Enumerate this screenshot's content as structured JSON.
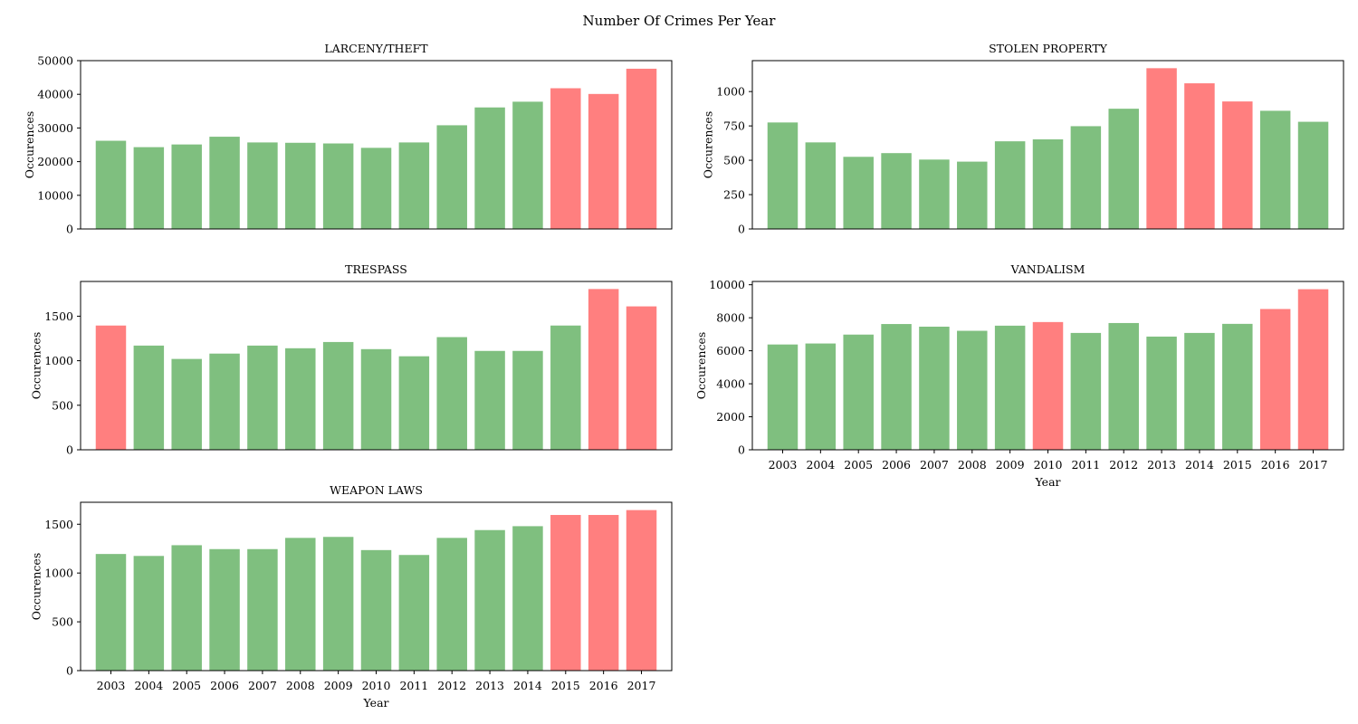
{
  "figure": {
    "title": "Number Of Crimes Per Year"
  },
  "colors": {
    "normal": "#7fbf7f",
    "high": "#ff7f7f"
  },
  "chart_data": [
    {
      "type": "bar",
      "title": "LARCENY/THEFT",
      "xlabel": "",
      "ylabel": "Occurences",
      "categories": [
        "2003",
        "2004",
        "2005",
        "2006",
        "2007",
        "2008",
        "2009",
        "2010",
        "2011",
        "2012",
        "2013",
        "2014",
        "2015",
        "2016",
        "2017"
      ],
      "values": [
        26200,
        24300,
        25100,
        27400,
        25700,
        25600,
        25400,
        24100,
        25700,
        30800,
        36100,
        37800,
        41800,
        40100,
        47600
      ],
      "highlighted": [
        "2015",
        "2016",
        "2017"
      ],
      "ylim": [
        0,
        50000
      ],
      "yticks": [
        0,
        10000,
        20000,
        30000,
        40000,
        50000
      ],
      "show_xticks": false
    },
    {
      "type": "bar",
      "title": "STOLEN PROPERTY",
      "xlabel": "",
      "ylabel": "Occurences",
      "categories": [
        "2003",
        "2004",
        "2005",
        "2006",
        "2007",
        "2008",
        "2009",
        "2010",
        "2011",
        "2012",
        "2013",
        "2014",
        "2015",
        "2016",
        "2017"
      ],
      "values": [
        775,
        630,
        525,
        552,
        505,
        490,
        638,
        652,
        748,
        875,
        1170,
        1060,
        928,
        860,
        780
      ],
      "highlighted": [
        "2013",
        "2014",
        "2015"
      ],
      "ylim": [
        0,
        1225
      ],
      "yticks": [
        0,
        250,
        500,
        750,
        1000
      ],
      "show_xticks": false
    },
    {
      "type": "bar",
      "title": "TRESPASS",
      "xlabel": "",
      "ylabel": "Occurences",
      "categories": [
        "2003",
        "2004",
        "2005",
        "2006",
        "2007",
        "2008",
        "2009",
        "2010",
        "2011",
        "2012",
        "2013",
        "2014",
        "2015",
        "2016",
        "2017"
      ],
      "values": [
        1395,
        1170,
        1020,
        1080,
        1170,
        1140,
        1210,
        1130,
        1050,
        1265,
        1110,
        1110,
        1395,
        1805,
        1610
      ],
      "highlighted": [
        "2003",
        "2016",
        "2017"
      ],
      "ylim": [
        0,
        1890
      ],
      "yticks": [
        0,
        500,
        1000,
        1500
      ],
      "show_xticks": false
    },
    {
      "type": "bar",
      "title": "VANDALISM",
      "xlabel": "Year",
      "ylabel": "Occurences",
      "categories": [
        "2003",
        "2004",
        "2005",
        "2006",
        "2007",
        "2008",
        "2009",
        "2010",
        "2011",
        "2012",
        "2013",
        "2014",
        "2015",
        "2016",
        "2017"
      ],
      "values": [
        6380,
        6440,
        6980,
        7620,
        7460,
        7210,
        7520,
        7740,
        7080,
        7680,
        6860,
        7080,
        7630,
        8530,
        9730
      ],
      "highlighted": [
        "2010",
        "2016",
        "2017"
      ],
      "ylim": [
        0,
        10200
      ],
      "yticks": [
        0,
        2000,
        4000,
        6000,
        8000,
        10000
      ],
      "show_xticks": true
    },
    {
      "type": "bar",
      "title": "WEAPON LAWS",
      "xlabel": "Year",
      "ylabel": "Occurences",
      "categories": [
        "2003",
        "2004",
        "2005",
        "2006",
        "2007",
        "2008",
        "2009",
        "2010",
        "2011",
        "2012",
        "2013",
        "2014",
        "2015",
        "2016",
        "2017"
      ],
      "values": [
        1195,
        1175,
        1285,
        1245,
        1245,
        1360,
        1370,
        1235,
        1185,
        1360,
        1440,
        1480,
        1595,
        1595,
        1645
      ],
      "highlighted": [
        "2015",
        "2016",
        "2017"
      ],
      "ylim": [
        0,
        1725
      ],
      "yticks": [
        0,
        500,
        1000,
        1500
      ],
      "show_xticks": true
    }
  ]
}
